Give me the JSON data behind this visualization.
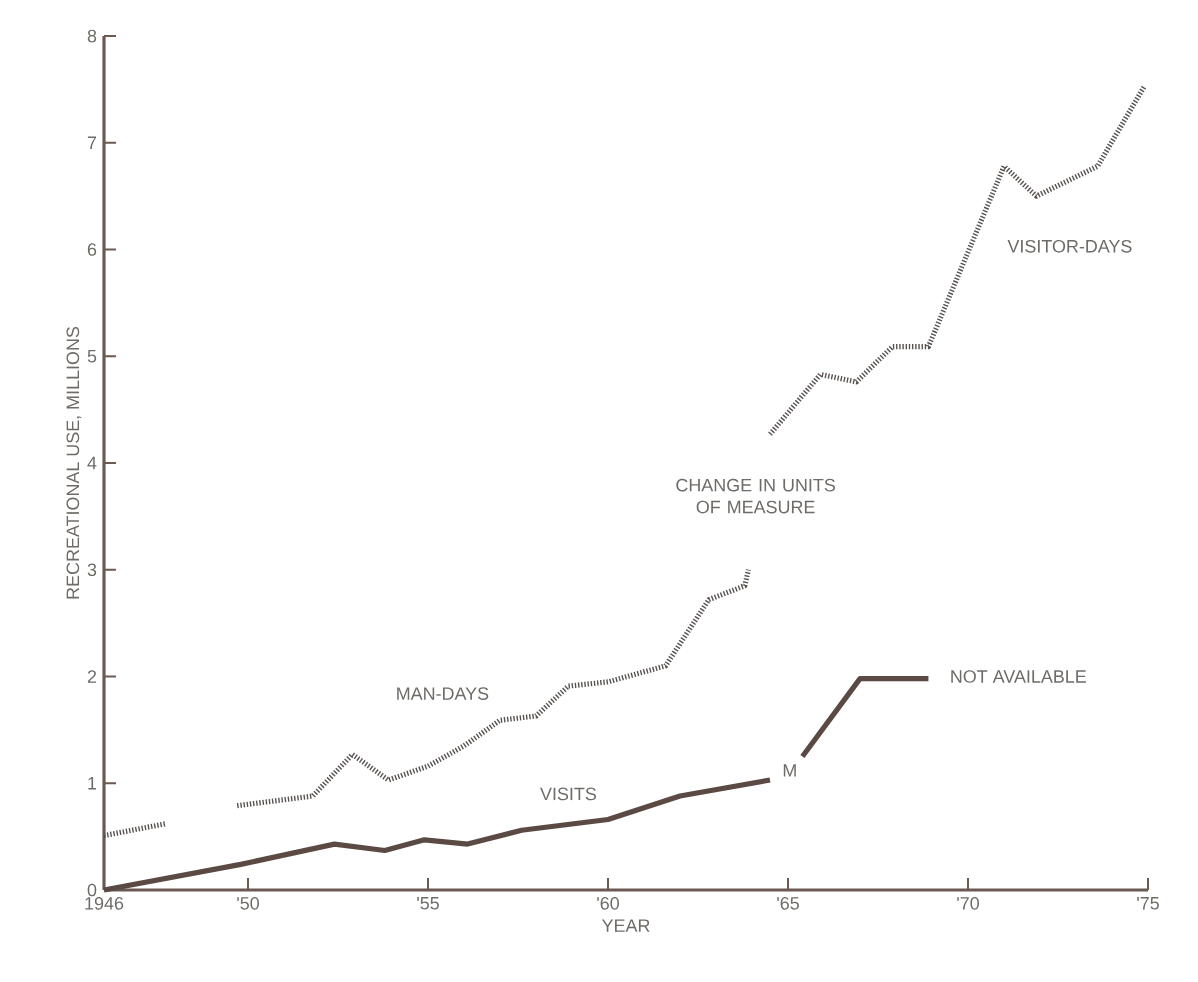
{
  "chart_data": {
    "type": "line",
    "xlabel": "YEAR",
    "ylabel": "RECREATIONAL USE, MILLIONS",
    "xlim": [
      1946,
      1975
    ],
    "ylim": [
      0,
      8
    ],
    "xticks": [
      1946,
      {
        "value": 1950,
        "label": "'50"
      },
      {
        "value": 1955,
        "label": "'55"
      },
      {
        "value": 1960,
        "label": "'60"
      },
      {
        "value": 1965,
        "label": "'65"
      },
      {
        "value": 1970,
        "label": "'70"
      },
      {
        "value": 1975,
        "label": "'75"
      }
    ],
    "yticks": [
      0,
      1,
      2,
      3,
      4,
      5,
      6,
      7,
      8
    ],
    "series": [
      {
        "name": "MAN-DAYS",
        "color": "#58524f",
        "line_style": "dotted",
        "x": [
          1946,
          1947.7,
          1948.7,
          1949.7,
          1951.8,
          1952.9,
          1953.9,
          1955,
          1956,
          1957,
          1958,
          1958.9,
          1960,
          1961.6,
          1962.8,
          1963.8,
          1963.9
        ],
        "values": [
          0.51,
          0.62,
          null,
          0.79,
          0.88,
          1.27,
          1.03,
          1.16,
          1.35,
          1.59,
          1.63,
          1.91,
          1.95,
          2.1,
          2.72,
          2.85,
          3.0
        ]
      },
      {
        "name": "VISITOR-DAYS",
        "color": "#58524f",
        "line_style": "dotted",
        "x": [
          1964.5,
          1965.9,
          1966.9,
          1967.9,
          1968.9,
          1971.0,
          1971.9,
          1973.6,
          1974.9
        ],
        "values": [
          4.27,
          4.83,
          4.76,
          5.09,
          5.09,
          6.78,
          6.5,
          6.78,
          7.53
        ]
      },
      {
        "name": "VISITS",
        "color": "#5b4a44",
        "line_style": "solid",
        "x": [
          1946,
          1949.8,
          1952.4,
          1953.8,
          1954.9,
          1956.1,
          1957.6,
          1960,
          1962,
          1964.5,
          1965,
          1965.4,
          1967,
          1968.9
        ],
        "values": [
          0,
          0.24,
          0.43,
          0.37,
          0.47,
          0.43,
          0.56,
          0.66,
          0.88,
          1.03,
          null,
          1.25,
          1.98,
          1.98
        ]
      }
    ],
    "annotations": [
      "CHANGE IN UNITS OF MEASURE",
      "M",
      "NOT AVAILABLE"
    ]
  }
}
